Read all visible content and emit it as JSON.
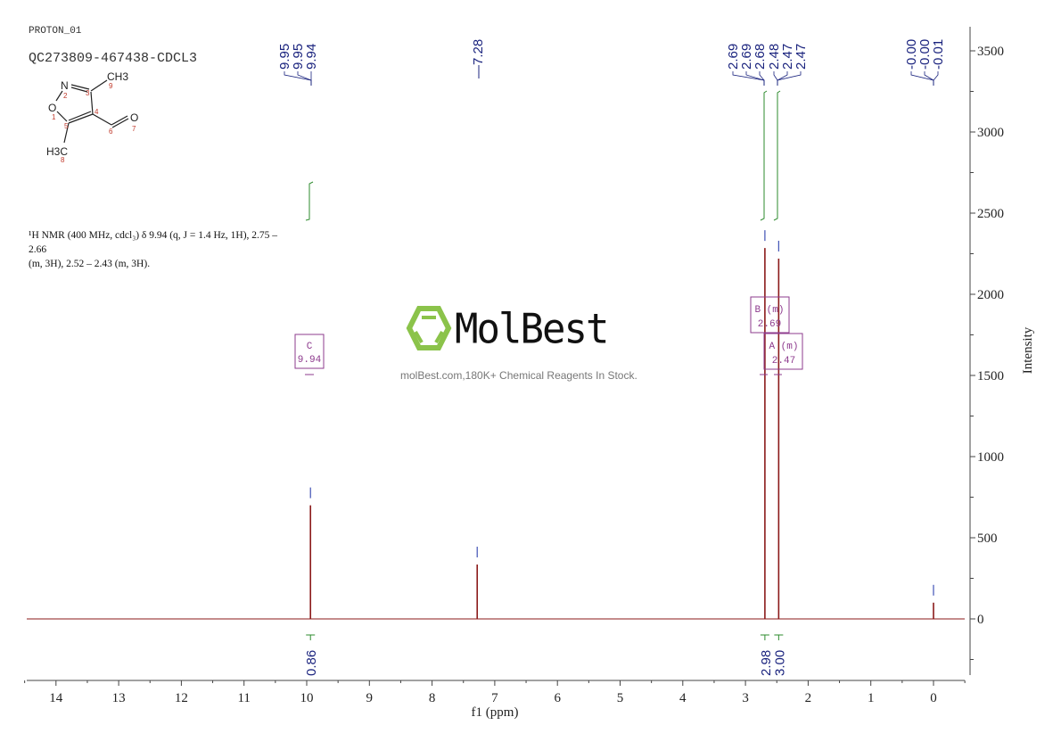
{
  "header": {
    "experiment": "PROTON_01",
    "sample": "QC273809-467438-CDCL3"
  },
  "structure": {
    "name": "3,5-dimethylisoxazole-4-carbaldehyde",
    "atoms": [
      "O 1",
      "N 2",
      "C 3",
      "C 4",
      "C 5",
      "C 6",
      "O 7",
      "CH3 8",
      "CH3 9"
    ],
    "labels": {
      "ch3_top": "CH3",
      "h3c_bottom": "H3C",
      "n": "N",
      "o_ring": "O",
      "o_ald": "O"
    }
  },
  "description": {
    "line1": "¹H NMR (400 MHz, cdcl₃) δ 9.94 (q, J = 1.4 Hz, 1H), 2.75 – 2.66",
    "line2": "(m, 3H), 2.52 – 2.43 (m, 3H)."
  },
  "watermark": {
    "brand": "MolBest",
    "tagline": "molBest.com,180K+ Chemical Reagents In Stock.",
    "accent": "#8bc34a"
  },
  "colors": {
    "spectrum": "#8b1a1a",
    "peak_marker": "#3f51b5",
    "integral": "#2e8b2e",
    "multiplet_box": "#8e3b8e",
    "label": "#1a237e"
  },
  "chart_data": {
    "type": "line",
    "title": "QC273809-467438-CDCL3",
    "xlabel": "f1 (ppm)",
    "ylabel": "Intensity",
    "xlim": [
      14.5,
      -0.5
    ],
    "ylim": [
      -333,
      3650
    ],
    "x_ticks": [
      "14",
      "13",
      "12",
      "11",
      "10",
      "9",
      "8",
      "7",
      "6",
      "5",
      "4",
      "3",
      "2",
      "1",
      "0"
    ],
    "y_ticks": [
      "0",
      "500",
      "1000",
      "1500",
      "2000",
      "2500",
      "3000",
      "3500"
    ],
    "peaks": [
      {
        "ppm": 9.94,
        "intensity": 700
      },
      {
        "ppm": 7.28,
        "intensity": 335
      },
      {
        "ppm": 2.69,
        "intensity": 2285
      },
      {
        "ppm": 2.47,
        "intensity": 2220
      },
      {
        "ppm": 0.0,
        "intensity": 100
      }
    ],
    "peak_labels": [
      {
        "group": "9.95 9.95 9.94",
        "values": [
          "9.95",
          "9.95",
          "9.94"
        ]
      },
      {
        "group": "7.28",
        "values": [
          "7.28"
        ]
      },
      {
        "group": "2.69 2.69 2.68 2.48 2.47 2.47",
        "values": [
          "2.69",
          "2.69",
          "2.68",
          "2.48",
          "2.47",
          "2.47"
        ]
      },
      {
        "group": "-0.00 -0.00 -0.01",
        "values": [
          "-0.00",
          "-0.00",
          "-0.01"
        ]
      }
    ],
    "multiplets": [
      {
        "label": "C",
        "type": "(q)",
        "shift": "9.94"
      },
      {
        "label": "B",
        "type": "(m)",
        "shift": "2.69"
      },
      {
        "label": "A",
        "type": "(m)",
        "shift": "2.47"
      }
    ],
    "integrals": [
      {
        "ppm": 9.94,
        "value": "0.86"
      },
      {
        "ppm": 2.69,
        "value": "2.98"
      },
      {
        "ppm": 2.47,
        "value": "3.00"
      }
    ],
    "grid": false
  }
}
